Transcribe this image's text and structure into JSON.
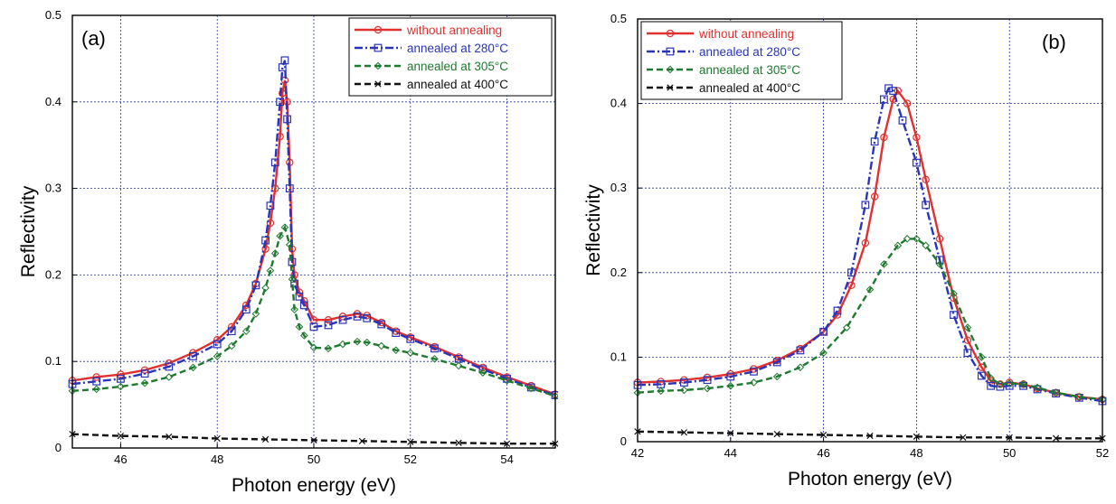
{
  "chart_data": [
    {
      "type": "line",
      "panel_label": "(a)",
      "xlabel": "Photon energy (eV)",
      "ylabel": "Reflectivity",
      "xlim": [
        45,
        55
      ],
      "ylim": [
        0,
        0.5
      ],
      "xticks": [
        46,
        48,
        50,
        52,
        54
      ],
      "yticks": [
        0,
        0.1,
        0.2,
        0.3,
        0.4,
        0.5
      ],
      "grid": true,
      "legend_position": "top-right",
      "series": [
        {
          "name": "without annealing",
          "color": "#e03030",
          "marker": "circle",
          "dash": "solid",
          "x": [
            45,
            45.5,
            46,
            46.5,
            47,
            47.5,
            48,
            48.3,
            48.6,
            48.8,
            49,
            49.1,
            49.2,
            49.3,
            49.35,
            49.4,
            49.45,
            49.5,
            49.55,
            49.6,
            49.7,
            49.8,
            50,
            50.3,
            50.6,
            50.9,
            51.1,
            51.4,
            51.7,
            52,
            52.5,
            53,
            53.5,
            54,
            54.5,
            55
          ],
          "y": [
            0.078,
            0.082,
            0.085,
            0.09,
            0.098,
            0.11,
            0.125,
            0.14,
            0.165,
            0.19,
            0.23,
            0.26,
            0.3,
            0.36,
            0.41,
            0.425,
            0.4,
            0.33,
            0.23,
            0.2,
            0.18,
            0.17,
            0.148,
            0.148,
            0.152,
            0.155,
            0.153,
            0.145,
            0.135,
            0.128,
            0.117,
            0.105,
            0.093,
            0.082,
            0.072,
            0.062
          ]
        },
        {
          "name": "annealed at 280°C",
          "color": "#2a34b8",
          "marker": "square",
          "dash": "dashdot",
          "x": [
            45,
            45.5,
            46,
            46.5,
            47,
            47.5,
            48,
            48.3,
            48.6,
            48.8,
            49,
            49.1,
            49.2,
            49.3,
            49.35,
            49.4,
            49.45,
            49.5,
            49.55,
            49.6,
            49.7,
            49.8,
            50,
            50.3,
            50.6,
            50.9,
            51.1,
            51.4,
            51.7,
            52,
            52.5,
            53,
            53.5,
            54,
            54.5,
            55
          ],
          "y": [
            0.074,
            0.077,
            0.08,
            0.086,
            0.094,
            0.106,
            0.12,
            0.135,
            0.16,
            0.188,
            0.24,
            0.28,
            0.33,
            0.4,
            0.44,
            0.448,
            0.38,
            0.3,
            0.215,
            0.19,
            0.175,
            0.165,
            0.14,
            0.142,
            0.148,
            0.152,
            0.15,
            0.143,
            0.133,
            0.126,
            0.115,
            0.103,
            0.091,
            0.08,
            0.07,
            0.061
          ]
        },
        {
          "name": "annealed at 305°C",
          "color": "#1e7a2e",
          "marker": "diamond",
          "dash": "dashed",
          "x": [
            45,
            45.5,
            46,
            46.5,
            47,
            47.5,
            48,
            48.3,
            48.6,
            48.8,
            49,
            49.1,
            49.2,
            49.3,
            49.4,
            49.5,
            49.55,
            49.6,
            49.7,
            49.8,
            50,
            50.3,
            50.6,
            50.9,
            51.1,
            51.4,
            51.7,
            52,
            52.5,
            53,
            53.5,
            54,
            54.5,
            55
          ],
          "y": [
            0.066,
            0.068,
            0.071,
            0.075,
            0.082,
            0.093,
            0.106,
            0.118,
            0.135,
            0.155,
            0.185,
            0.205,
            0.225,
            0.245,
            0.255,
            0.235,
            0.195,
            0.16,
            0.14,
            0.13,
            0.116,
            0.115,
            0.12,
            0.123,
            0.122,
            0.118,
            0.113,
            0.11,
            0.103,
            0.095,
            0.087,
            0.078,
            0.069,
            0.06
          ]
        },
        {
          "name": "annealed at 400°C",
          "color": "#111111",
          "marker": "x",
          "dash": "dashed",
          "x": [
            45,
            46,
            47,
            48,
            49,
            50,
            51,
            52,
            53,
            54,
            55
          ],
          "y": [
            0.016,
            0.014,
            0.013,
            0.011,
            0.01,
            0.009,
            0.008,
            0.007,
            0.006,
            0.005,
            0.005
          ]
        }
      ]
    },
    {
      "type": "line",
      "panel_label": "(b)",
      "xlabel": "Photon energy (eV)",
      "ylabel": "Reflectivity",
      "xlim": [
        42,
        52
      ],
      "ylim": [
        0,
        0.5
      ],
      "xticks": [
        42,
        44,
        46,
        48,
        50,
        52
      ],
      "yticks": [
        0,
        0.1,
        0.2,
        0.3,
        0.4,
        0.5
      ],
      "grid": true,
      "legend_position": "top-left",
      "series": [
        {
          "name": "without annealing",
          "color": "#e03030",
          "marker": "circle",
          "dash": "solid",
          "x": [
            42,
            42.5,
            43,
            43.5,
            44,
            44.5,
            45,
            45.5,
            46,
            46.3,
            46.6,
            46.9,
            47.1,
            47.3,
            47.5,
            47.6,
            47.8,
            48,
            48.2,
            48.5,
            48.8,
            49.1,
            49.4,
            49.6,
            49.8,
            50,
            50.3,
            50.6,
            51,
            51.5,
            52
          ],
          "y": [
            0.07,
            0.071,
            0.073,
            0.076,
            0.08,
            0.086,
            0.096,
            0.11,
            0.13,
            0.15,
            0.185,
            0.235,
            0.29,
            0.36,
            0.405,
            0.415,
            0.4,
            0.36,
            0.31,
            0.24,
            0.17,
            0.12,
            0.088,
            0.072,
            0.068,
            0.07,
            0.068,
            0.063,
            0.058,
            0.053,
            0.05
          ]
        },
        {
          "name": "annealed at 280°C",
          "color": "#2a34b8",
          "marker": "square",
          "dash": "dashdot",
          "x": [
            42,
            42.5,
            43,
            43.5,
            44,
            44.5,
            45,
            45.5,
            46,
            46.3,
            46.6,
            46.9,
            47.1,
            47.3,
            47.4,
            47.5,
            47.7,
            48,
            48.2,
            48.5,
            48.8,
            49.1,
            49.4,
            49.6,
            49.8,
            50,
            50.3,
            50.6,
            51,
            51.5,
            52
          ],
          "y": [
            0.067,
            0.068,
            0.07,
            0.073,
            0.077,
            0.083,
            0.094,
            0.108,
            0.13,
            0.155,
            0.2,
            0.28,
            0.355,
            0.405,
            0.418,
            0.415,
            0.38,
            0.33,
            0.28,
            0.215,
            0.15,
            0.105,
            0.078,
            0.066,
            0.065,
            0.066,
            0.066,
            0.062,
            0.057,
            0.052,
            0.048
          ]
        },
        {
          "name": "annealed at 305°C",
          "color": "#1e7a2e",
          "marker": "diamond",
          "dash": "dashed",
          "x": [
            42,
            42.5,
            43,
            43.5,
            44,
            44.5,
            45,
            45.5,
            46,
            46.5,
            47,
            47.3,
            47.6,
            47.8,
            48,
            48.2,
            48.5,
            48.8,
            49.1,
            49.4,
            49.6,
            49.8,
            50,
            50.3,
            50.6,
            51,
            51.5,
            52
          ],
          "y": [
            0.058,
            0.06,
            0.061,
            0.063,
            0.066,
            0.07,
            0.077,
            0.088,
            0.105,
            0.135,
            0.18,
            0.21,
            0.232,
            0.24,
            0.24,
            0.232,
            0.21,
            0.175,
            0.135,
            0.1,
            0.075,
            0.068,
            0.069,
            0.068,
            0.064,
            0.058,
            0.053,
            0.05
          ]
        },
        {
          "name": "annealed at 400°C",
          "color": "#111111",
          "marker": "x",
          "dash": "dashed",
          "x": [
            42,
            43,
            44,
            45,
            46,
            47,
            48,
            49,
            50,
            51,
            52
          ],
          "y": [
            0.012,
            0.011,
            0.01,
            0.009,
            0.008,
            0.007,
            0.006,
            0.005,
            0.005,
            0.004,
            0.004
          ]
        }
      ]
    }
  ]
}
